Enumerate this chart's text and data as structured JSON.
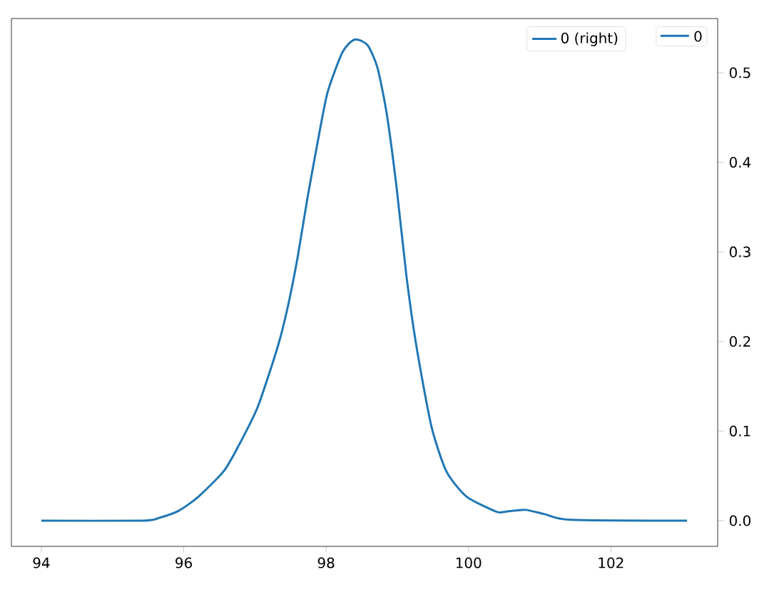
{
  "chart_data": {
    "type": "line",
    "x": [
      94.0,
      95.44,
      95.65,
      95.93,
      96.21,
      96.56,
      96.76,
      97.04,
      97.32,
      97.46,
      97.6,
      97.74,
      97.88,
      98.02,
      98.23,
      98.4,
      98.58,
      98.72,
      98.85,
      98.99,
      99.13,
      99.27,
      99.48,
      99.69,
      99.97,
      100.39,
      100.52,
      100.8,
      101.08,
      101.43,
      103.07
    ],
    "series": [
      {
        "name": "0 (right)",
        "color": "#1f77b4",
        "axis": "y2",
        "values": [
          0,
          0,
          0.003,
          0.011,
          0.027,
          0.055,
          0.082,
          0.127,
          0.194,
          0.238,
          0.294,
          0.361,
          0.422,
          0.478,
          0.523,
          0.537,
          0.531,
          0.506,
          0.455,
          0.372,
          0.272,
          0.194,
          0.105,
          0.055,
          0.027,
          0.01,
          0.01,
          0.012,
          0.007,
          0.001,
          0
        ]
      }
    ],
    "annotations": [
      "0"
    ],
    "xlim": [
      93.58,
      103.5
    ],
    "xticks": [
      94,
      96,
      98,
      100,
      102
    ],
    "y2lim": [
      -0.0287,
      0.5605
    ],
    "y2ticks": [
      {
        "value": 0,
        "label": "0.0"
      },
      {
        "value": 0.1,
        "label": "0.1"
      },
      {
        "value": 0.2,
        "label": "0.2"
      },
      {
        "value": 0.3,
        "label": "0.3"
      },
      {
        "value": 0.4,
        "label": "0.4"
      },
      {
        "value": 0.5,
        "label": "0.5"
      }
    ],
    "legend": "top right",
    "grid": false,
    "marker": "none",
    "line_style": "solid"
  }
}
